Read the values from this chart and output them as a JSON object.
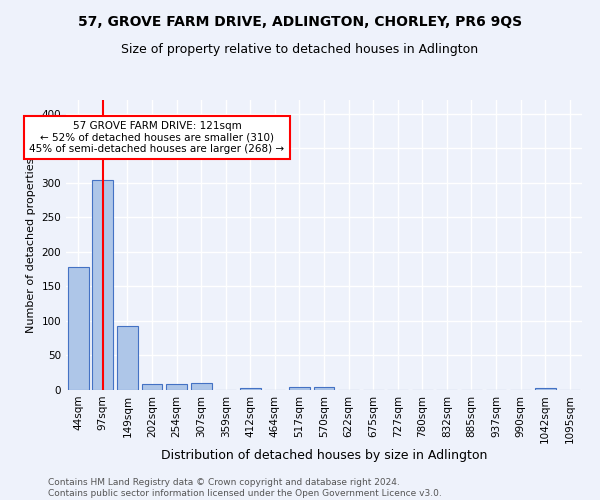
{
  "title": "57, GROVE FARM DRIVE, ADLINGTON, CHORLEY, PR6 9QS",
  "subtitle": "Size of property relative to detached houses in Adlington",
  "xlabel": "Distribution of detached houses by size in Adlington",
  "ylabel": "Number of detached properties",
  "footer_line1": "Contains HM Land Registry data © Crown copyright and database right 2024.",
  "footer_line2": "Contains public sector information licensed under the Open Government Licence v3.0.",
  "bin_labels": [
    "44sqm",
    "97sqm",
    "149sqm",
    "202sqm",
    "254sqm",
    "307sqm",
    "359sqm",
    "412sqm",
    "464sqm",
    "517sqm",
    "570sqm",
    "622sqm",
    "675sqm",
    "727sqm",
    "780sqm",
    "832sqm",
    "885sqm",
    "937sqm",
    "990sqm",
    "1042sqm",
    "1095sqm"
  ],
  "bar_values": [
    178,
    304,
    92,
    8,
    9,
    10,
    0,
    3,
    0,
    4,
    4,
    0,
    0,
    0,
    0,
    0,
    0,
    0,
    0,
    3,
    0
  ],
  "bar_color": "#aec6e8",
  "bar_edge_color": "#4472c4",
  "red_line_x": 1,
  "annotation_text": "57 GROVE FARM DRIVE: 121sqm\n← 52% of detached houses are smaller (310)\n45% of semi-detached houses are larger (268) →",
  "ylim": [
    0,
    420
  ],
  "yticks": [
    0,
    50,
    100,
    150,
    200,
    250,
    300,
    350,
    400
  ],
  "background_color": "#eef2fb",
  "grid_color": "#ffffff",
  "title_fontsize": 10,
  "subtitle_fontsize": 9,
  "ylabel_fontsize": 8,
  "xlabel_fontsize": 9,
  "tick_fontsize": 7.5,
  "annotation_fontsize": 7.5,
  "footer_fontsize": 6.5
}
